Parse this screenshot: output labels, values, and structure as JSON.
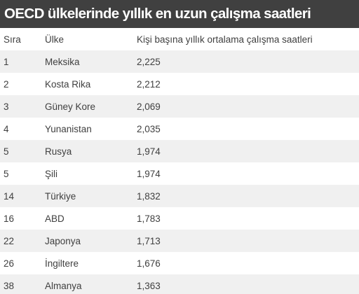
{
  "title": "OECD ülkelerinde yıllık en uzun çalışma saatleri",
  "chart_data": {
    "type": "table",
    "title": "OECD ülkelerinde yıllık en uzun çalışma saatleri",
    "columns": [
      "Sıra",
      "Ülke",
      "Kişi başına yıllık ortalama çalışma saatleri"
    ],
    "rows": [
      [
        "1",
        "Meksika",
        "2,225"
      ],
      [
        "2",
        "Kosta Rika",
        "2,212"
      ],
      [
        "3",
        "Güney Kore",
        "2,069"
      ],
      [
        "4",
        "Yunanistan",
        "2,035"
      ],
      [
        "5",
        "Rusya",
        "1,974"
      ],
      [
        "5",
        "Şili",
        "1,974"
      ],
      [
        "14",
        "Türkiye",
        "1,832"
      ],
      [
        "16",
        "ABD",
        "1,783"
      ],
      [
        "22",
        "Japonya",
        "1,713"
      ],
      [
        "26",
        "İngiltere",
        "1,676"
      ],
      [
        "38",
        "Almanya",
        "1,363"
      ]
    ]
  },
  "colors": {
    "title_bar": "#404040",
    "title_text": "#ffffff",
    "row_stripe": "#f0f0f0",
    "text": "#404040"
  }
}
